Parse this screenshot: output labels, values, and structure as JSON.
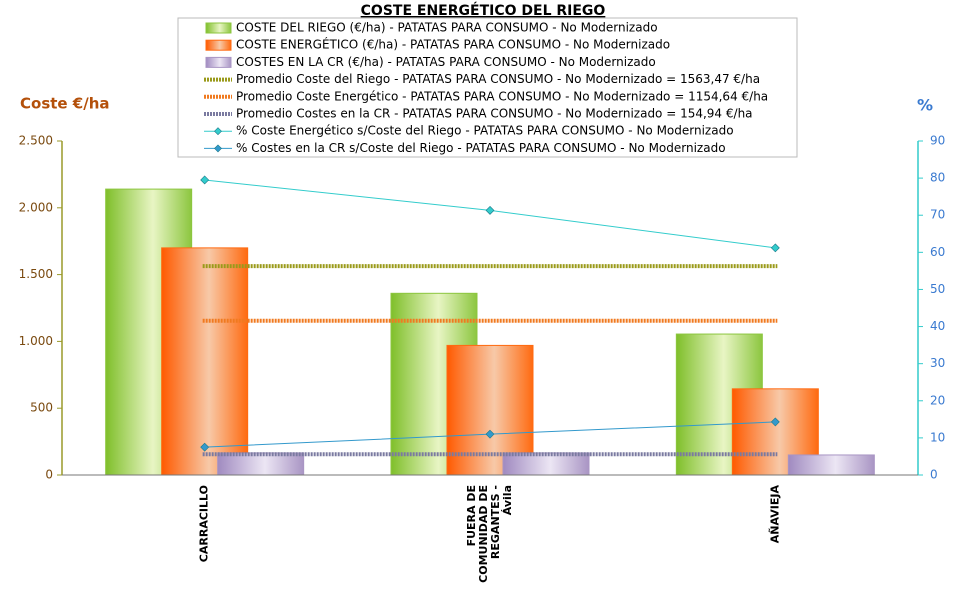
{
  "chart_data": {
    "type": "bar",
    "title": "COSTE ENERGÉTICO DEL RIEGO",
    "y_label": "Coste €/ha",
    "y2_label": "%",
    "categories": [
      "CARRACILLO",
      "FUERA DE COMUNIDAD DE REGANTES - Ávila",
      "AÑAVIEJA"
    ],
    "ylim": [
      0,
      2500
    ],
    "yticks": [
      0,
      500,
      {
        "value": 1000,
        "label": "1.000"
      },
      {
        "value": 1500,
        "label": "1.500"
      },
      {
        "value": 2000,
        "label": "2.000"
      },
      {
        "value": 2500,
        "label": "2.500"
      }
    ],
    "y2lim": [
      0,
      90
    ],
    "y2ticks": [
      0,
      10,
      20,
      30,
      40,
      50,
      60,
      70,
      80,
      90
    ],
    "series": [
      {
        "name": "COSTE DEL RIEGO (€/ha) - PATATAS PARA CONSUMO - No Modernizado",
        "type": "bar",
        "color": "#8cc63f",
        "values": [
          2140,
          1360,
          1055
        ]
      },
      {
        "name": "COSTE ENERGÉTICO (€/ha) - PATATAS PARA CONSUMO - No Modernizado",
        "type": "bar",
        "color": "#ff6a10",
        "values": [
          1700,
          970,
          645
        ]
      },
      {
        "name": "COSTES EN LA CR (€/ha) - PATATAS PARA CONSUMO - No Modernizado",
        "type": "bar",
        "color": "#a995c4",
        "values": [
          165,
          165,
          150
        ]
      },
      {
        "name": "Promedio Coste del Riego - PATATAS PARA CONSUMO - No Modernizado = 1563,47 €/ha",
        "type": "average",
        "color": "#9a9a1a",
        "value": 1563.47
      },
      {
        "name": "Promedio Coste Energético - PATATAS PARA CONSUMO - No Modernizado = 1154,64 €/ha",
        "type": "average",
        "color": "#f07a20",
        "value": 1154.64
      },
      {
        "name": "Promedio Costes en la CR - PATATAS PARA CONSUMO - No Modernizado = 154,94 €/ha",
        "type": "average",
        "color": "#7a7aa0",
        "value": 154.94
      },
      {
        "name": "% Coste Energético s/Coste del Riego - PATATAS PARA CONSUMO - No Modernizado",
        "type": "line",
        "axis": "y2",
        "color": "#33cccc",
        "values": [
          79.5,
          71.3,
          61.2
        ]
      },
      {
        "name": "% Costes en la CR s/Coste del Riego - PATATAS PARA CONSUMO - No Modernizado",
        "type": "line",
        "axis": "y2",
        "color": "#3399cc",
        "values": [
          7.5,
          11.0,
          14.3
        ]
      }
    ]
  }
}
